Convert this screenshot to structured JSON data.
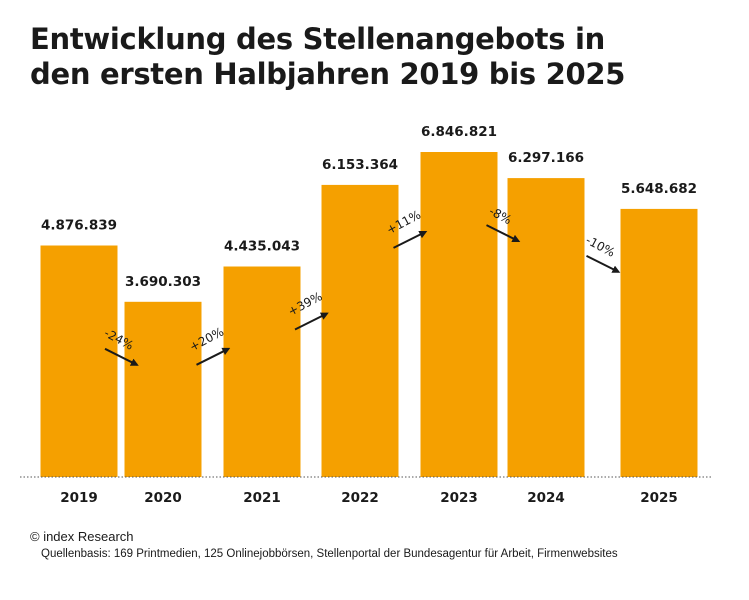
{
  "title": {
    "line1": "Entwicklung des Stellenangebots in",
    "line2": "den ersten Halbjahren 2019 bis 2025"
  },
  "footer": {
    "copyright": "© index Research",
    "source": "Quellenbasis: 169 Printmedien, 125 Onlinejobbörsen, Stellenportal der Bundesagentur für Arbeit, Firmenwebsites"
  },
  "colors": {
    "bar": "#F5A000",
    "text": "#1a1a1a",
    "arrow": "#1a1a1a",
    "baseline": "#555555"
  },
  "chart_data": {
    "type": "bar",
    "title": "Entwicklung des Stellenangebots in den ersten Halbjahren 2019 bis 2025",
    "categories": [
      "2019",
      "2020",
      "2021",
      "2022",
      "2023",
      "2024",
      "2025"
    ],
    "values": [
      4876839,
      3690303,
      4435043,
      6153364,
      6846821,
      6297166,
      5648682
    ],
    "value_labels": [
      "4.876.839",
      "3.690.303",
      "4.435.043",
      "6.153.364",
      "6.846.821",
      "6.297.166",
      "5.648.682"
    ],
    "changes": [
      "-24%",
      "+20%",
      "+39%",
      "+11%",
      "-8%",
      "-10%"
    ],
    "xlabel": "",
    "ylabel": "",
    "ylim": [
      0,
      7000000
    ],
    "grid": false,
    "legend": "none"
  }
}
